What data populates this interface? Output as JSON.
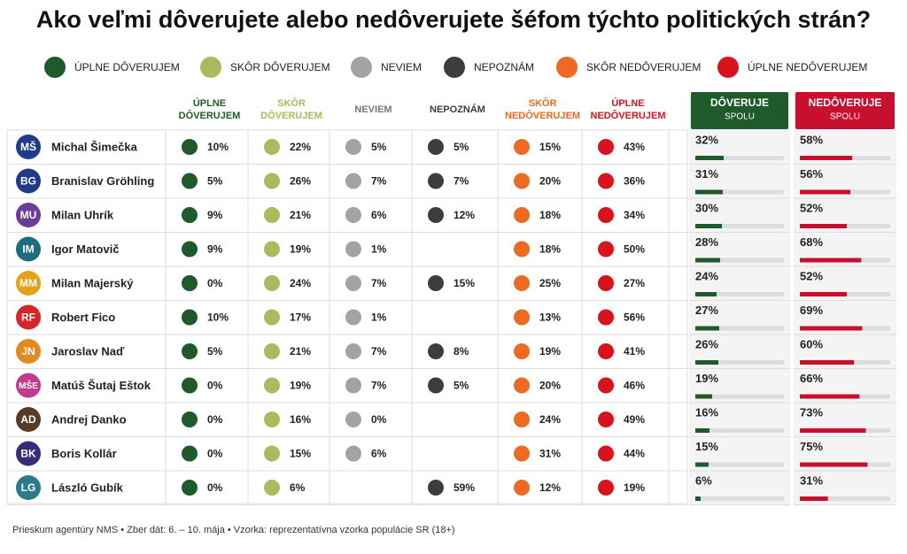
{
  "title": "Ako veľmi dôverujete alebo nedôverujete šéfom týchto politických strán?",
  "legend": [
    "ÚPLNE DÔVERUJEM",
    "SKÔR DÔVERUJEM",
    "NEVIEM",
    "NEPOZNÁM",
    "SKÔR NEDÔVERUJEM",
    "ÚPLNE NEDÔVERUJEM"
  ],
  "colors": [
    "#1e5a2a",
    "#a9bb5e",
    "#a3a3a3",
    "#3d3d3d",
    "#ee6a22",
    "#d7141e"
  ],
  "table": {
    "columns": [
      [
        "ÚPLNE",
        "DÔVERUJEM"
      ],
      [
        "SKÔR",
        "DÔVERUJEM"
      ],
      [
        "NEVIEM"
      ],
      [
        "NEPOZNÁM"
      ],
      [
        "SKÔR",
        "NEDÔVERUJEM"
      ],
      [
        "ÚPLNE",
        "NEDÔVERUJEM"
      ]
    ],
    "totals": [
      {
        "title": "DÔVERUJE",
        "subtitle": "SPOLU",
        "color": "#1e5a2a"
      },
      {
        "title": "NEDÔVERUJE",
        "subtitle": "SPOLU",
        "color": "#c8102e"
      }
    ],
    "rows": [
      {
        "initials": "MŠ",
        "name": "Michal Šimečka",
        "color": "#1f3b8a",
        "cells": [
          "10%",
          "22%",
          "5%",
          "5%",
          "15%",
          "43%"
        ],
        "trust": {
          "value": 32,
          "label": "32%"
        },
        "distrust": {
          "value": 58,
          "label": "58%"
        }
      },
      {
        "initials": "BG",
        "name": "Branislav Gröhling",
        "color": "#1f3b8a",
        "cells": [
          "5%",
          "26%",
          "7%",
          "7%",
          "20%",
          "36%"
        ],
        "trust": {
          "value": 31,
          "label": "31%"
        },
        "distrust": {
          "value": 56,
          "label": "56%"
        }
      },
      {
        "initials": "MU",
        "name": "Milan Uhrík",
        "color": "#6a3d9a",
        "cells": [
          "9%",
          "21%",
          "6%",
          "12%",
          "18%",
          "34%"
        ],
        "trust": {
          "value": 30,
          "label": "30%"
        },
        "distrust": {
          "value": 52,
          "label": "52%"
        }
      },
      {
        "initials": "IM",
        "name": "Igor Matovič",
        "color": "#1c6e7d",
        "cells": [
          "9%",
          "19%",
          "1%",
          null,
          "18%",
          "50%"
        ],
        "trust": {
          "value": 28,
          "label": "28%"
        },
        "distrust": {
          "value": 68,
          "label": "68%"
        }
      },
      {
        "initials": "MM",
        "name": "Milan Majerský",
        "color": "#e3a21a",
        "cells": [
          "0%",
          "24%",
          "7%",
          "15%",
          "25%",
          "27%"
        ],
        "trust": {
          "value": 24,
          "label": "24%"
        },
        "distrust": {
          "value": 52,
          "label": "52%"
        }
      },
      {
        "initials": "RF",
        "name": "Robert Fico",
        "color": "#d6262a",
        "cells": [
          "10%",
          "17%",
          "1%",
          null,
          "13%",
          "56%"
        ],
        "trust": {
          "value": 27,
          "label": "27%"
        },
        "distrust": {
          "value": 69,
          "label": "69%"
        }
      },
      {
        "initials": "JN",
        "name": "Jaroslav Naď",
        "color": "#e08a20",
        "cells": [
          "5%",
          "21%",
          "7%",
          "8%",
          "19%",
          "41%"
        ],
        "trust": {
          "value": 26,
          "label": "26%"
        },
        "distrust": {
          "value": 60,
          "label": "60%"
        }
      },
      {
        "initials": "MŠE",
        "name": "Matúš Šutaj Eštok",
        "color": "#c23a8c",
        "cells": [
          "0%",
          "19%",
          "7%",
          "5%",
          "20%",
          "46%"
        ],
        "trust": {
          "value": 19,
          "label": "19%"
        },
        "distrust": {
          "value": 66,
          "label": "66%"
        }
      },
      {
        "initials": "AD",
        "name": "Andrej Danko",
        "color": "#5a3a22",
        "cells": [
          "0%",
          "16%",
          "0%",
          null,
          "24%",
          "49%"
        ],
        "trust": {
          "value": 16,
          "label": "16%"
        },
        "distrust": {
          "value": 73,
          "label": "73%"
        }
      },
      {
        "initials": "BK",
        "name": "Boris Kollár",
        "color": "#3a2a7a",
        "cells": [
          "0%",
          "15%",
          "6%",
          null,
          "31%",
          "44%"
        ],
        "trust": {
          "value": 15,
          "label": "15%"
        },
        "distrust": {
          "value": 75,
          "label": "75%"
        }
      },
      {
        "initials": "LG",
        "name": "László Gubík",
        "color": "#2a7a8a",
        "cells": [
          "0%",
          "6%",
          null,
          "59%",
          "12%",
          "19%"
        ],
        "trust": {
          "value": 6,
          "label": "6%"
        },
        "distrust": {
          "value": 31,
          "label": "31%"
        }
      }
    ]
  },
  "footer": "Prieskum agentúry NMS • Zber dát: 6. – 10. mája • Vzorka: reprezentatívna vzorka populácie SR (18+)"
}
